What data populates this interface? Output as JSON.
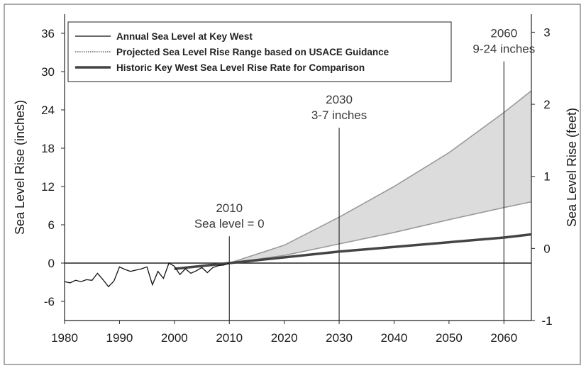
{
  "chart_data": {
    "type": "line",
    "x_axis": {
      "label": "",
      "range": [
        1980,
        2065
      ],
      "ticks": [
        1980,
        1990,
        2000,
        2010,
        2020,
        2030,
        2040,
        2050,
        2060
      ]
    },
    "y_axis_left": {
      "label": "Sea Level Rise (inches)",
      "range": [
        -9,
        39
      ],
      "ticks": [
        -6,
        0,
        6,
        12,
        18,
        24,
        30,
        36
      ]
    },
    "y_axis_right": {
      "label": "Sea Level Rise (feet)",
      "range": [
        -1,
        3.25
      ],
      "ticks": [
        -1,
        0,
        1,
        2,
        3
      ]
    },
    "legend": {
      "position": "top-left",
      "entries": [
        {
          "label": "Annual Sea Level at Key West",
          "color": "#111111",
          "style": "thin-line"
        },
        {
          "label": "Projected Sea Level Rise Range based on USACE Guidance",
          "color": "#8a8a8a",
          "style": "dotted-line"
        },
        {
          "label": "Historic Key West Sea Level Rise Rate for Comparison",
          "color": "#444444",
          "style": "thick-line"
        }
      ]
    },
    "series": [
      {
        "name": "Annual Sea Level at Key West",
        "color": "#111111",
        "points": [
          [
            1980,
            -2.9
          ],
          [
            1981,
            -3.1
          ],
          [
            1982,
            -2.7
          ],
          [
            1983,
            -2.9
          ],
          [
            1984,
            -2.6
          ],
          [
            1985,
            -2.7
          ],
          [
            1986,
            -1.6
          ],
          [
            1987,
            -2.6
          ],
          [
            1988,
            -3.7
          ],
          [
            1989,
            -2.8
          ],
          [
            1990,
            -0.6
          ],
          [
            1991,
            -1.0
          ],
          [
            1992,
            -1.3
          ],
          [
            1993,
            -1.1
          ],
          [
            1994,
            -0.9
          ],
          [
            1995,
            -0.6
          ],
          [
            1996,
            -3.4
          ],
          [
            1997,
            -1.3
          ],
          [
            1998,
            -2.4
          ],
          [
            1999,
            0.0
          ],
          [
            2000,
            -0.5
          ],
          [
            2001,
            -1.8
          ],
          [
            2002,
            -0.9
          ],
          [
            2003,
            -1.6
          ],
          [
            2004,
            -1.2
          ],
          [
            2005,
            -0.7
          ],
          [
            2006,
            -1.5
          ],
          [
            2007,
            -0.7
          ],
          [
            2008,
            -0.4
          ],
          [
            2009,
            -0.3
          ],
          [
            2010,
            0.0
          ]
        ]
      },
      {
        "name": "Projected Sea Level Rise Range based on USACE Guidance",
        "color": "#8a8a8a",
        "band": true,
        "low": [
          [
            2010,
            0
          ],
          [
            2020,
            1.2
          ],
          [
            2030,
            3.0
          ],
          [
            2040,
            4.8
          ],
          [
            2050,
            6.8
          ],
          [
            2060,
            8.7
          ],
          [
            2065,
            9.6
          ]
        ],
        "high": [
          [
            2010,
            0
          ],
          [
            2020,
            2.8
          ],
          [
            2030,
            7.2
          ],
          [
            2040,
            12.0
          ],
          [
            2050,
            17.3
          ],
          [
            2060,
            23.6
          ],
          [
            2065,
            27.0
          ]
        ]
      },
      {
        "name": "Historic Key West Sea Level Rise Rate for Comparison",
        "color": "#444444",
        "points": [
          [
            2000,
            -0.9
          ],
          [
            2010,
            0.0
          ],
          [
            2030,
            1.8
          ],
          [
            2060,
            4.0
          ],
          [
            2065,
            4.5
          ]
        ]
      }
    ],
    "annotations": [
      {
        "x": 2010,
        "line_to_y": 4.2,
        "lines": [
          "2010",
          "Sea level = 0"
        ]
      },
      {
        "x": 2030,
        "line_to_y": 21.2,
        "lines": [
          "2030",
          "3-7 inches"
        ]
      },
      {
        "x": 2060,
        "line_to_y": 31.6,
        "lines": [
          "2060",
          "9-24 inches"
        ]
      }
    ],
    "zero_line": 0,
    "grid": false
  }
}
